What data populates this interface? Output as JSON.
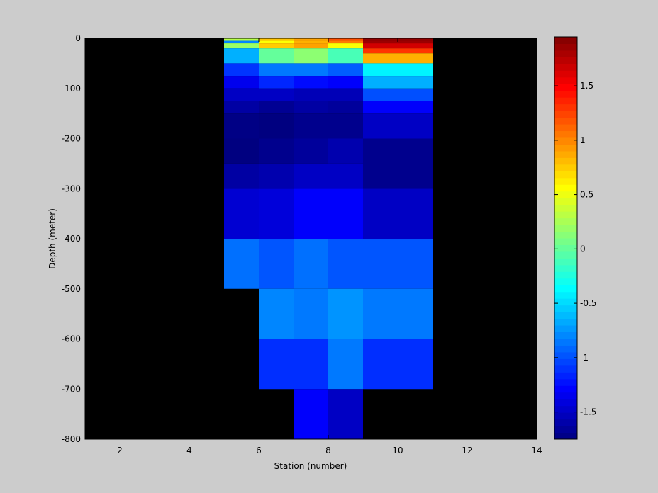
{
  "chart_data": {
    "type": "heatmap",
    "title": "",
    "xlabel": "Station (number)",
    "ylabel": "Depth (meter)",
    "xlim": [
      1,
      14
    ],
    "ylim": [
      -800,
      0
    ],
    "xticks": [
      2,
      4,
      6,
      8,
      10,
      12,
      14
    ],
    "yticks": [
      0,
      -100,
      -200,
      -300,
      -400,
      -500,
      -600,
      -700,
      -800
    ],
    "background": "#000000",
    "colorbar": {
      "colormap": "jet",
      "range": [
        -1.75,
        1.95
      ],
      "ticks": [
        1.5,
        1,
        0.5,
        0,
        -0.5,
        -1,
        -1.5
      ],
      "levels": 60
    },
    "cells": [
      {
        "x0": 5,
        "x1": 6,
        "y0": 0,
        "y1": -5,
        "v": 0.3
      },
      {
        "x0": 5,
        "x1": 6,
        "y0": -5,
        "y1": -10,
        "v": -0.8
      },
      {
        "x0": 5,
        "x1": 6,
        "y0": -10,
        "y1": -20,
        "v": 0.2
      },
      {
        "x0": 5,
        "x1": 6,
        "y0": -20,
        "y1": -50,
        "v": -0.65
      },
      {
        "x0": 5,
        "x1": 6,
        "y0": -50,
        "y1": -75,
        "v": -1.1
      },
      {
        "x0": 5,
        "x1": 6,
        "y0": -75,
        "y1": -100,
        "v": -1.35
      },
      {
        "x0": 5,
        "x1": 6,
        "y0": -100,
        "y1": -125,
        "v": -1.5
      },
      {
        "x0": 5,
        "x1": 6,
        "y0": -125,
        "y1": -150,
        "v": -1.62
      },
      {
        "x0": 5,
        "x1": 6,
        "y0": -150,
        "y1": -200,
        "v": -1.73
      },
      {
        "x0": 5,
        "x1": 6,
        "y0": -200,
        "y1": -250,
        "v": -1.75
      },
      {
        "x0": 5,
        "x1": 6,
        "y0": -250,
        "y1": -300,
        "v": -1.62
      },
      {
        "x0": 5,
        "x1": 6,
        "y0": -300,
        "y1": -400,
        "v": -1.45
      },
      {
        "x0": 5,
        "x1": 6,
        "y0": -400,
        "y1": -500,
        "v": -0.88
      },
      {
        "x0": 6,
        "x1": 7,
        "y0": 0,
        "y1": -5,
        "v": 0.78
      },
      {
        "x0": 6,
        "x1": 7,
        "y0": -5,
        "y1": -10,
        "v": 0.55
      },
      {
        "x0": 6,
        "x1": 7,
        "y0": -10,
        "y1": -20,
        "v": 0.75
      },
      {
        "x0": 6,
        "x1": 7,
        "y0": -20,
        "y1": -50,
        "v": 0.0
      },
      {
        "x0": 6,
        "x1": 7,
        "y0": -50,
        "y1": -75,
        "v": -0.85
      },
      {
        "x0": 6,
        "x1": 7,
        "y0": -75,
        "y1": -100,
        "v": -1.15
      },
      {
        "x0": 6,
        "x1": 7,
        "y0": -100,
        "y1": -125,
        "v": -1.5
      },
      {
        "x0": 6,
        "x1": 7,
        "y0": -125,
        "y1": -150,
        "v": -1.68
      },
      {
        "x0": 6,
        "x1": 7,
        "y0": -150,
        "y1": -200,
        "v": -1.75
      },
      {
        "x0": 6,
        "x1": 7,
        "y0": -200,
        "y1": -250,
        "v": -1.7
      },
      {
        "x0": 6,
        "x1": 7,
        "y0": -250,
        "y1": -300,
        "v": -1.58
      },
      {
        "x0": 6,
        "x1": 7,
        "y0": -300,
        "y1": -400,
        "v": -1.42
      },
      {
        "x0": 6,
        "x1": 7,
        "y0": -400,
        "y1": -500,
        "v": -0.98
      },
      {
        "x0": 6,
        "x1": 7,
        "y0": -500,
        "y1": -600,
        "v": -0.8
      },
      {
        "x0": 6,
        "x1": 7,
        "y0": -600,
        "y1": -700,
        "v": -1.12
      },
      {
        "x0": 7,
        "x1": 8,
        "y0": 0,
        "y1": -5,
        "v": 0.9
      },
      {
        "x0": 7,
        "x1": 8,
        "y0": -5,
        "y1": -10,
        "v": 0.85
      },
      {
        "x0": 7,
        "x1": 8,
        "y0": -10,
        "y1": -20,
        "v": 0.9
      },
      {
        "x0": 7,
        "x1": 8,
        "y0": -20,
        "y1": -50,
        "v": 0.15
      },
      {
        "x0": 7,
        "x1": 8,
        "y0": -50,
        "y1": -75,
        "v": -0.85
      },
      {
        "x0": 7,
        "x1": 8,
        "y0": -75,
        "y1": -100,
        "v": -1.25
      },
      {
        "x0": 7,
        "x1": 8,
        "y0": -100,
        "y1": -125,
        "v": -1.55
      },
      {
        "x0": 7,
        "x1": 8,
        "y0": -125,
        "y1": -150,
        "v": -1.62
      },
      {
        "x0": 7,
        "x1": 8,
        "y0": -150,
        "y1": -200,
        "v": -1.7
      },
      {
        "x0": 7,
        "x1": 8,
        "y0": -200,
        "y1": -250,
        "v": -1.65
      },
      {
        "x0": 7,
        "x1": 8,
        "y0": -250,
        "y1": -300,
        "v": -1.5
      },
      {
        "x0": 7,
        "x1": 8,
        "y0": -300,
        "y1": -400,
        "v": -1.3
      },
      {
        "x0": 7,
        "x1": 8,
        "y0": -400,
        "y1": -500,
        "v": -0.88
      },
      {
        "x0": 7,
        "x1": 8,
        "y0": -500,
        "y1": -600,
        "v": -0.85
      },
      {
        "x0": 7,
        "x1": 8,
        "y0": -600,
        "y1": -700,
        "v": -1.12
      },
      {
        "x0": 7,
        "x1": 8,
        "y0": -700,
        "y1": -800,
        "v": -1.3
      },
      {
        "x0": 8,
        "x1": 9,
        "y0": 0,
        "y1": -5,
        "v": 1.2
      },
      {
        "x0": 8,
        "x1": 9,
        "y0": -5,
        "y1": -10,
        "v": 1.05
      },
      {
        "x0": 8,
        "x1": 9,
        "y0": -10,
        "y1": -20,
        "v": 0.55
      },
      {
        "x0": 8,
        "x1": 9,
        "y0": -20,
        "y1": -50,
        "v": -0.1
      },
      {
        "x0": 8,
        "x1": 9,
        "y0": -50,
        "y1": -75,
        "v": -0.95
      },
      {
        "x0": 8,
        "x1": 9,
        "y0": -75,
        "y1": -100,
        "v": -1.3
      },
      {
        "x0": 8,
        "x1": 9,
        "y0": -100,
        "y1": -125,
        "v": -1.55
      },
      {
        "x0": 8,
        "x1": 9,
        "y0": -125,
        "y1": -150,
        "v": -1.65
      },
      {
        "x0": 8,
        "x1": 9,
        "y0": -150,
        "y1": -200,
        "v": -1.7
      },
      {
        "x0": 8,
        "x1": 9,
        "y0": -200,
        "y1": -250,
        "v": -1.58
      },
      {
        "x0": 8,
        "x1": 9,
        "y0": -250,
        "y1": -300,
        "v": -1.5
      },
      {
        "x0": 8,
        "x1": 9,
        "y0": -300,
        "y1": -400,
        "v": -1.3
      },
      {
        "x0": 8,
        "x1": 9,
        "y0": -400,
        "y1": -500,
        "v": -0.98
      },
      {
        "x0": 8,
        "x1": 9,
        "y0": -500,
        "y1": -600,
        "v": -0.75
      },
      {
        "x0": 8,
        "x1": 9,
        "y0": -600,
        "y1": -700,
        "v": -0.85
      },
      {
        "x0": 8,
        "x1": 9,
        "y0": -700,
        "y1": -800,
        "v": -1.5
      },
      {
        "x0": 9,
        "x1": 11,
        "y0": 0,
        "y1": -5,
        "v": 1.88
      },
      {
        "x0": 9,
        "x1": 11,
        "y0": -5,
        "y1": -10,
        "v": 1.85
      },
      {
        "x0": 9,
        "x1": 11,
        "y0": -10,
        "y1": -20,
        "v": 1.65
      },
      {
        "x0": 9,
        "x1": 11,
        "y0": -20,
        "y1": -30,
        "v": 1.3
      },
      {
        "x0": 9,
        "x1": 11,
        "y0": -30,
        "y1": -50,
        "v": 0.85
      },
      {
        "x0": 9,
        "x1": 11,
        "y0": -50,
        "y1": -75,
        "v": -0.4
      },
      {
        "x0": 9,
        "x1": 11,
        "y0": -75,
        "y1": -100,
        "v": -0.65
      },
      {
        "x0": 9,
        "x1": 11,
        "y0": -100,
        "y1": -125,
        "v": -1.0
      },
      {
        "x0": 9,
        "x1": 11,
        "y0": -125,
        "y1": -150,
        "v": -1.3
      },
      {
        "x0": 9,
        "x1": 11,
        "y0": -150,
        "y1": -200,
        "v": -1.5
      },
      {
        "x0": 9,
        "x1": 11,
        "y0": -200,
        "y1": -300,
        "v": -1.7
      },
      {
        "x0": 9,
        "x1": 11,
        "y0": -300,
        "y1": -400,
        "v": -1.5
      },
      {
        "x0": 9,
        "x1": 11,
        "y0": -400,
        "y1": -500,
        "v": -0.98
      },
      {
        "x0": 9,
        "x1": 11,
        "y0": -500,
        "y1": -600,
        "v": -0.85
      },
      {
        "x0": 9,
        "x1": 11,
        "y0": -600,
        "y1": -700,
        "v": -1.12
      }
    ]
  }
}
